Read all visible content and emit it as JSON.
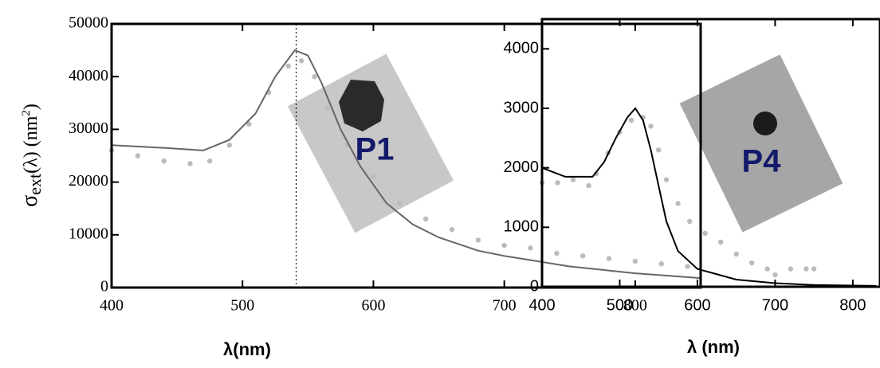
{
  "chart_data": [
    {
      "type": "line",
      "x_label": "λ(nm)",
      "y_label_parts": [
        "σ",
        "ext",
        "(λ) (nm",
        "2",
        ")"
      ],
      "inset_label": "P1",
      "xlim": [
        400,
        850
      ],
      "ylim": [
        0,
        50000
      ],
      "xticks": [
        400,
        500,
        600,
        700,
        800
      ],
      "yticks": [
        0,
        10000,
        20000,
        30000,
        40000,
        50000
      ],
      "vline": 541,
      "series": [
        {
          "mode": "markers",
          "color": "#bbbbbb",
          "x": [
            400,
            420,
            440,
            460,
            475,
            490,
            505,
            520,
            535,
            545,
            555,
            565,
            580,
            600,
            620,
            640,
            660,
            680,
            700,
            720,
            740,
            760,
            780,
            800,
            820,
            840
          ],
          "values": [
            26000,
            25000,
            24000,
            23500,
            24000,
            27000,
            31000,
            37000,
            42000,
            43000,
            40000,
            34000,
            27000,
            21000,
            16000,
            13000,
            11000,
            9000,
            8000,
            7500,
            6500,
            6000,
            5500,
            5000,
            4500,
            4000
          ]
        },
        {
          "mode": "line",
          "color": "#666666",
          "x": [
            400,
            440,
            470,
            490,
            510,
            525,
            540,
            550,
            560,
            575,
            590,
            610,
            630,
            650,
            680,
            700,
            750,
            800,
            850
          ],
          "values": [
            27000,
            26500,
            26000,
            28000,
            33000,
            40000,
            45000,
            44000,
            39000,
            30000,
            23000,
            16000,
            12000,
            9500,
            7000,
            6000,
            4000,
            2700,
            1800
          ]
        }
      ]
    },
    {
      "type": "line",
      "x_label": "λ (nm)",
      "inset_label": "P4",
      "xlim": [
        400,
        835
      ],
      "ylim": [
        0,
        4500
      ],
      "xticks": [
        400,
        500,
        600,
        700,
        800
      ],
      "yticks": [
        0,
        1000,
        2000,
        3000,
        4000
      ],
      "series": [
        {
          "mode": "markers",
          "color": "#bbbbbb",
          "x": [
            400,
            420,
            440,
            460,
            470,
            485,
            500,
            515,
            530,
            540,
            550,
            560,
            575,
            590,
            610,
            630,
            650,
            670,
            690,
            700,
            720,
            740,
            750
          ],
          "values": [
            1750,
            1750,
            1800,
            1700,
            1900,
            2250,
            2600,
            2800,
            2850,
            2700,
            2300,
            1800,
            1400,
            1100,
            900,
            750,
            550,
            400,
            300,
            200,
            300,
            300,
            300
          ]
        },
        {
          "mode": "line",
          "color": "#000000",
          "x": [
            400,
            430,
            465,
            480,
            495,
            510,
            520,
            530,
            540,
            550,
            560,
            575,
            600,
            650,
            700,
            750,
            800,
            830
          ],
          "values": [
            2000,
            1850,
            1850,
            2100,
            2500,
            2850,
            3000,
            2800,
            2300,
            1700,
            1100,
            600,
            300,
            120,
            60,
            30,
            20,
            15
          ]
        }
      ]
    }
  ]
}
